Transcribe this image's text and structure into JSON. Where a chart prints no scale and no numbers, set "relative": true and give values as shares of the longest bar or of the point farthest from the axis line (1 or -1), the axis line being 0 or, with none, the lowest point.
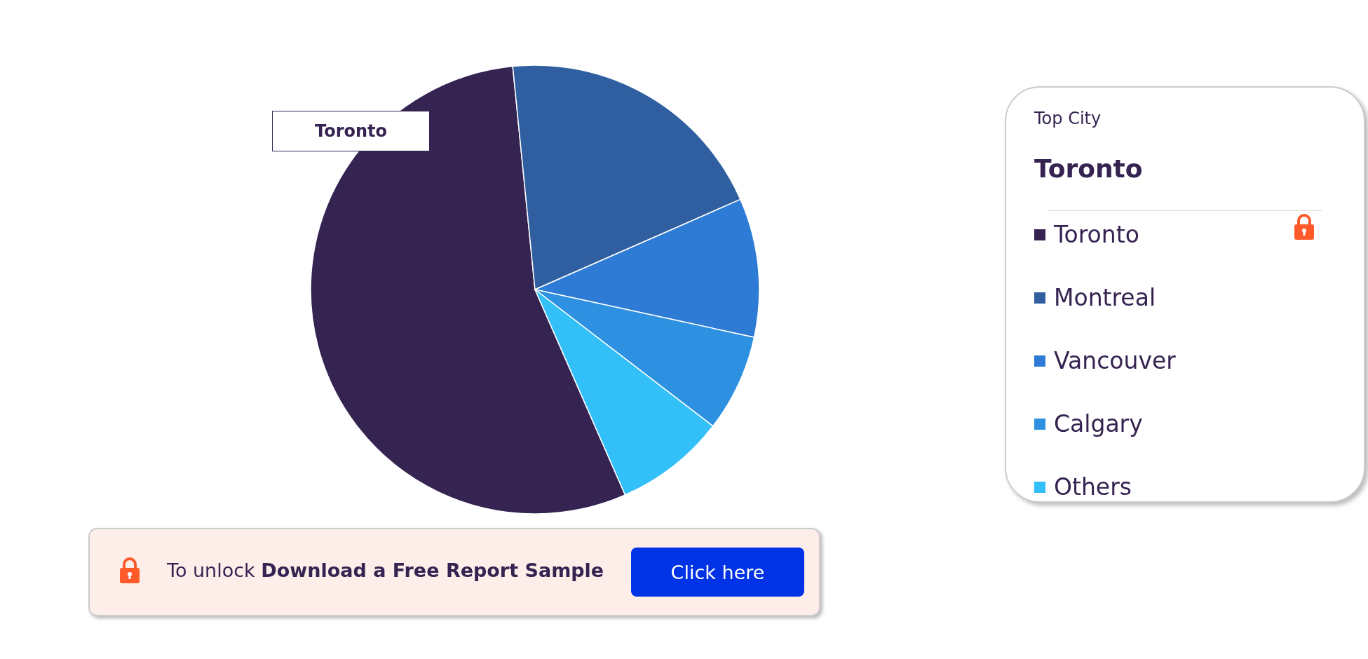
{
  "chart_data": {
    "type": "pie",
    "relative": true,
    "categories": [
      "Toronto",
      "Montreal",
      "Vancouver",
      "Calgary",
      "Others"
    ],
    "values": [
      55,
      20,
      10,
      7,
      8
    ],
    "colors": [
      "#352351",
      "#2f5fa0",
      "#2e7bd6",
      "#2d90e0",
      "#33bff8"
    ],
    "legend": "right",
    "annotations": [
      "Toronto",
      "Top City",
      "Toronto",
      "To unlock",
      "Download a Free Report Sample",
      "Click here"
    ]
  }
}
